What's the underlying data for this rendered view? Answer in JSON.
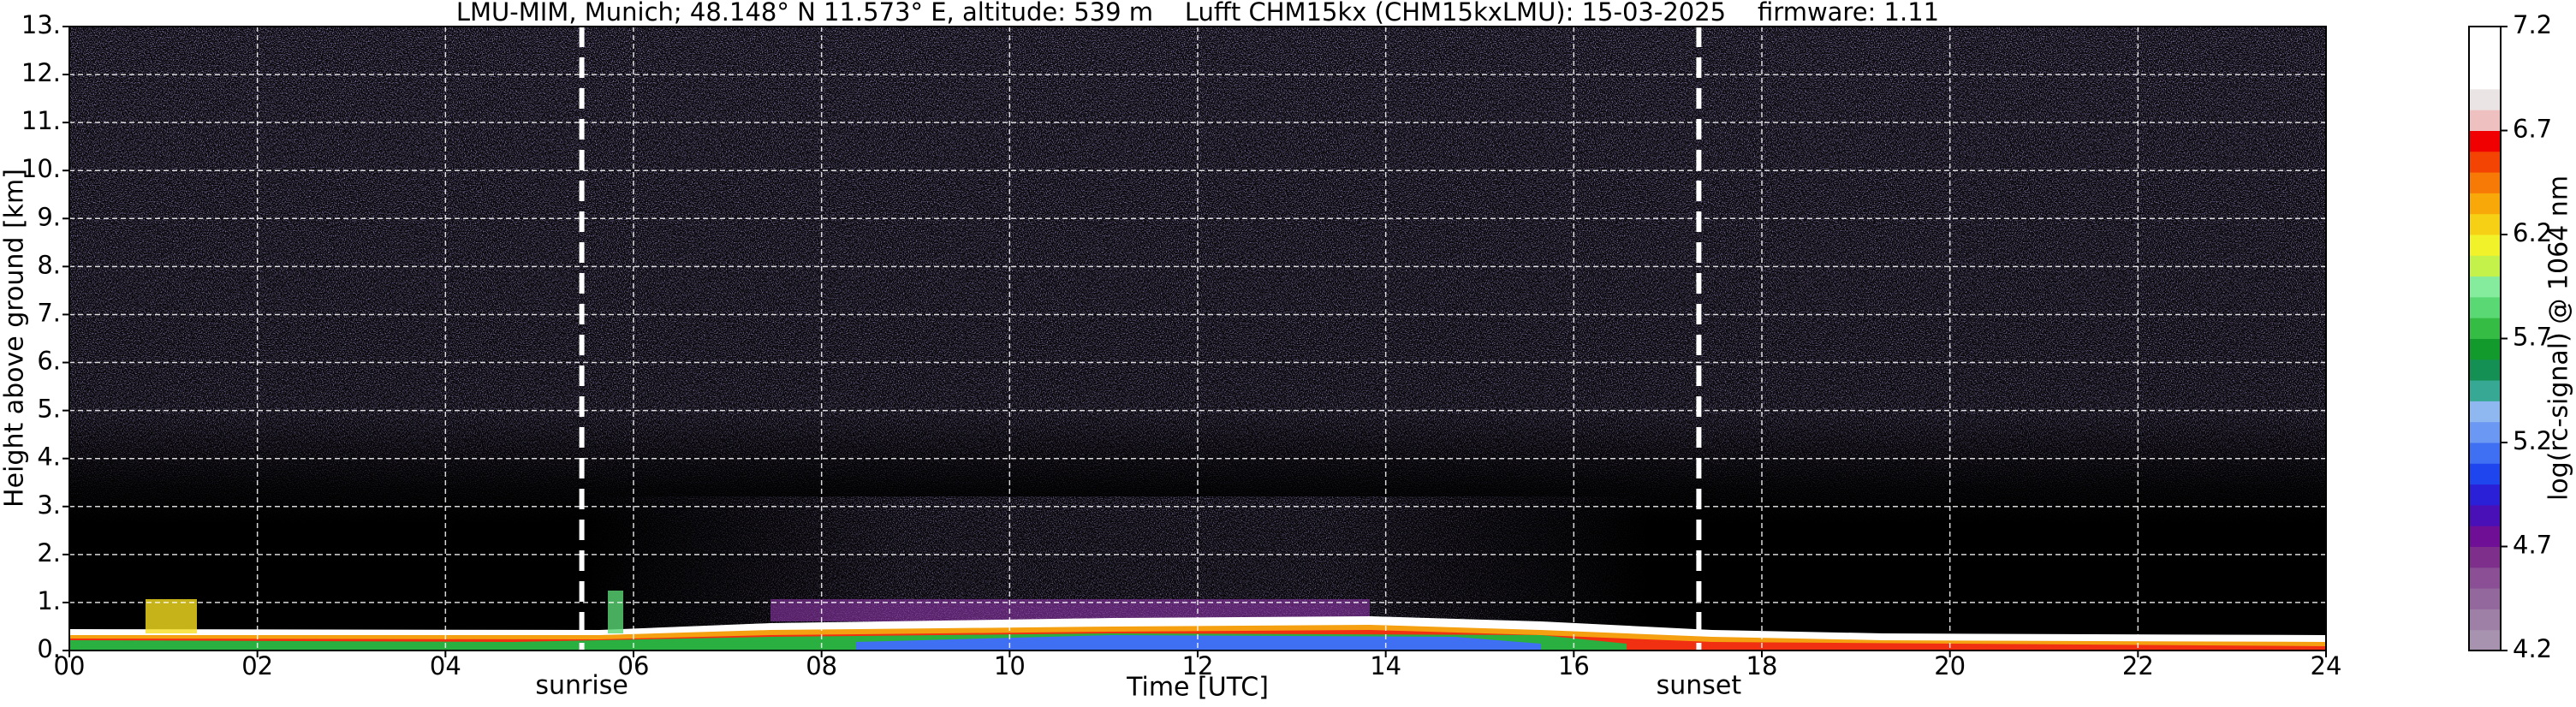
{
  "chart_data": {
    "type": "heatmap",
    "title": "LMU-MIM, Munich; 48.148° N 11.573° E, altitude: 539 m    Lufft CHM15kx (CHM15kxLMU): 15-03-2025    firmware: 1.11",
    "xlabel": "Time [UTC]",
    "ylabel": "Height above ground [km]",
    "xlim": [
      0,
      24
    ],
    "xticks": [
      {
        "value": 0,
        "label": "00"
      },
      {
        "value": 2,
        "label": "02"
      },
      {
        "value": 4,
        "label": "04"
      },
      {
        "value": 6,
        "label": "06"
      },
      {
        "value": 8,
        "label": "08"
      },
      {
        "value": 10,
        "label": "10"
      },
      {
        "value": 12,
        "label": "12"
      },
      {
        "value": 14,
        "label": "14"
      },
      {
        "value": 16,
        "label": "16"
      },
      {
        "value": 18,
        "label": "18"
      },
      {
        "value": 20,
        "label": "20"
      },
      {
        "value": 22,
        "label": "22"
      },
      {
        "value": 24,
        "label": "24"
      }
    ],
    "ylim": [
      0,
      13
    ],
    "yticks": [
      {
        "value": 0,
        "label": "0."
      },
      {
        "value": 1,
        "label": "1."
      },
      {
        "value": 2,
        "label": "2."
      },
      {
        "value": 3,
        "label": "3."
      },
      {
        "value": 4,
        "label": "4."
      },
      {
        "value": 5,
        "label": "5."
      },
      {
        "value": 6,
        "label": "6."
      },
      {
        "value": 7,
        "label": "7."
      },
      {
        "value": 8,
        "label": "8."
      },
      {
        "value": 9,
        "label": "9."
      },
      {
        "value": 10,
        "label": "10."
      },
      {
        "value": 11,
        "label": "11."
      },
      {
        "value": 12,
        "label": "12."
      },
      {
        "value": 13,
        "label": "13."
      }
    ],
    "grid": true,
    "annotations": [
      {
        "text": "sunrise",
        "x": 5.45
      },
      {
        "text": "sunset",
        "x": 17.33
      }
    ],
    "colorbar": {
      "label": "log(rc-signal) @ 1064 nm",
      "lim": [
        4.2,
        7.2
      ],
      "ticks": [
        4.2,
        4.7,
        5.2,
        5.7,
        6.2,
        6.7,
        7.2
      ],
      "colors": [
        "#a792b0",
        "#9e80a6",
        "#93689c",
        "#8a4f94",
        "#7e2f8c",
        "#6e0f96",
        "#4a10b8",
        "#2a20d8",
        "#1f45ee",
        "#3f6ff2",
        "#6b98f2",
        "#8fb8f0",
        "#36a894",
        "#149054",
        "#129a2c",
        "#34bc44",
        "#5ad874",
        "#84ec9c",
        "#c4f24a",
        "#f2f22a",
        "#f6d014",
        "#f8a808",
        "#f87a06",
        "#f44404",
        "#f00000",
        "#efc0c0",
        "#eae4e4",
        "#ffffff",
        "#ffffff",
        "#ffffff"
      ]
    }
  }
}
